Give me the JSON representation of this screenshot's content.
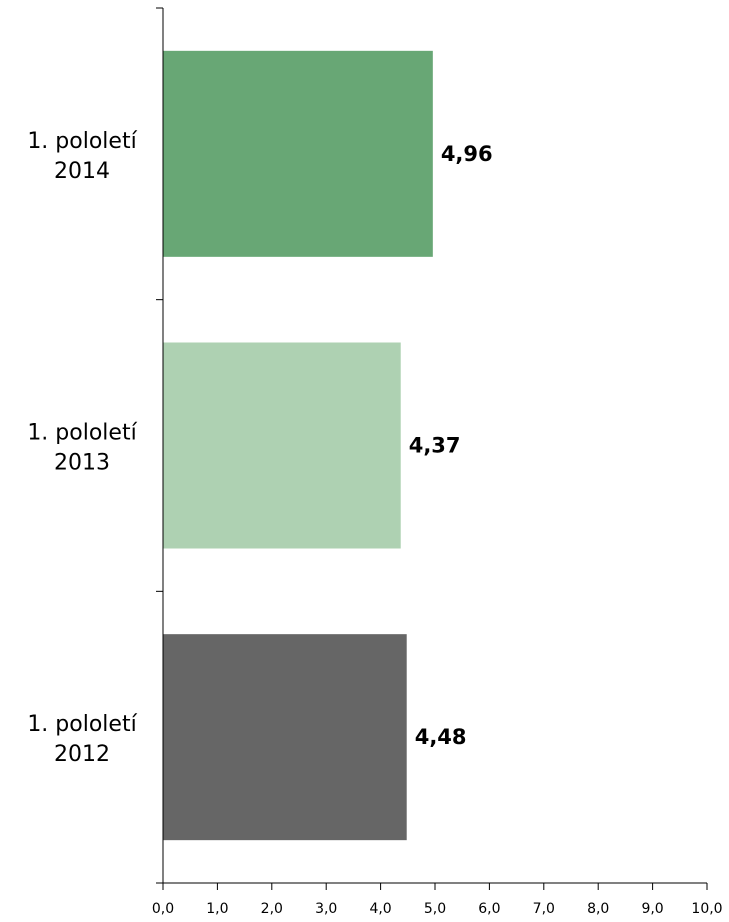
{
  "chart_data": {
    "type": "bar",
    "orientation": "horizontal",
    "categories": [
      [
        "1. pololetí",
        "2014"
      ],
      [
        "1. pololetí",
        "2013"
      ],
      [
        "1. pololetí",
        "2012"
      ]
    ],
    "values": [
      4.96,
      4.37,
      4.48
    ],
    "value_labels": [
      "4,96",
      "4,37",
      "4,48"
    ],
    "colors": [
      "#68a775",
      "#aed1b2",
      "#666666"
    ],
    "xlim": [
      0,
      10
    ],
    "x_ticks": [
      "0,0",
      "1,0",
      "2,0",
      "3,0",
      "4,0",
      "5,0",
      "6,0",
      "7,0",
      "8,0",
      "9,0",
      "10,0"
    ],
    "grid": false,
    "legend": "none",
    "title": "",
    "xlabel": "",
    "ylabel": ""
  }
}
